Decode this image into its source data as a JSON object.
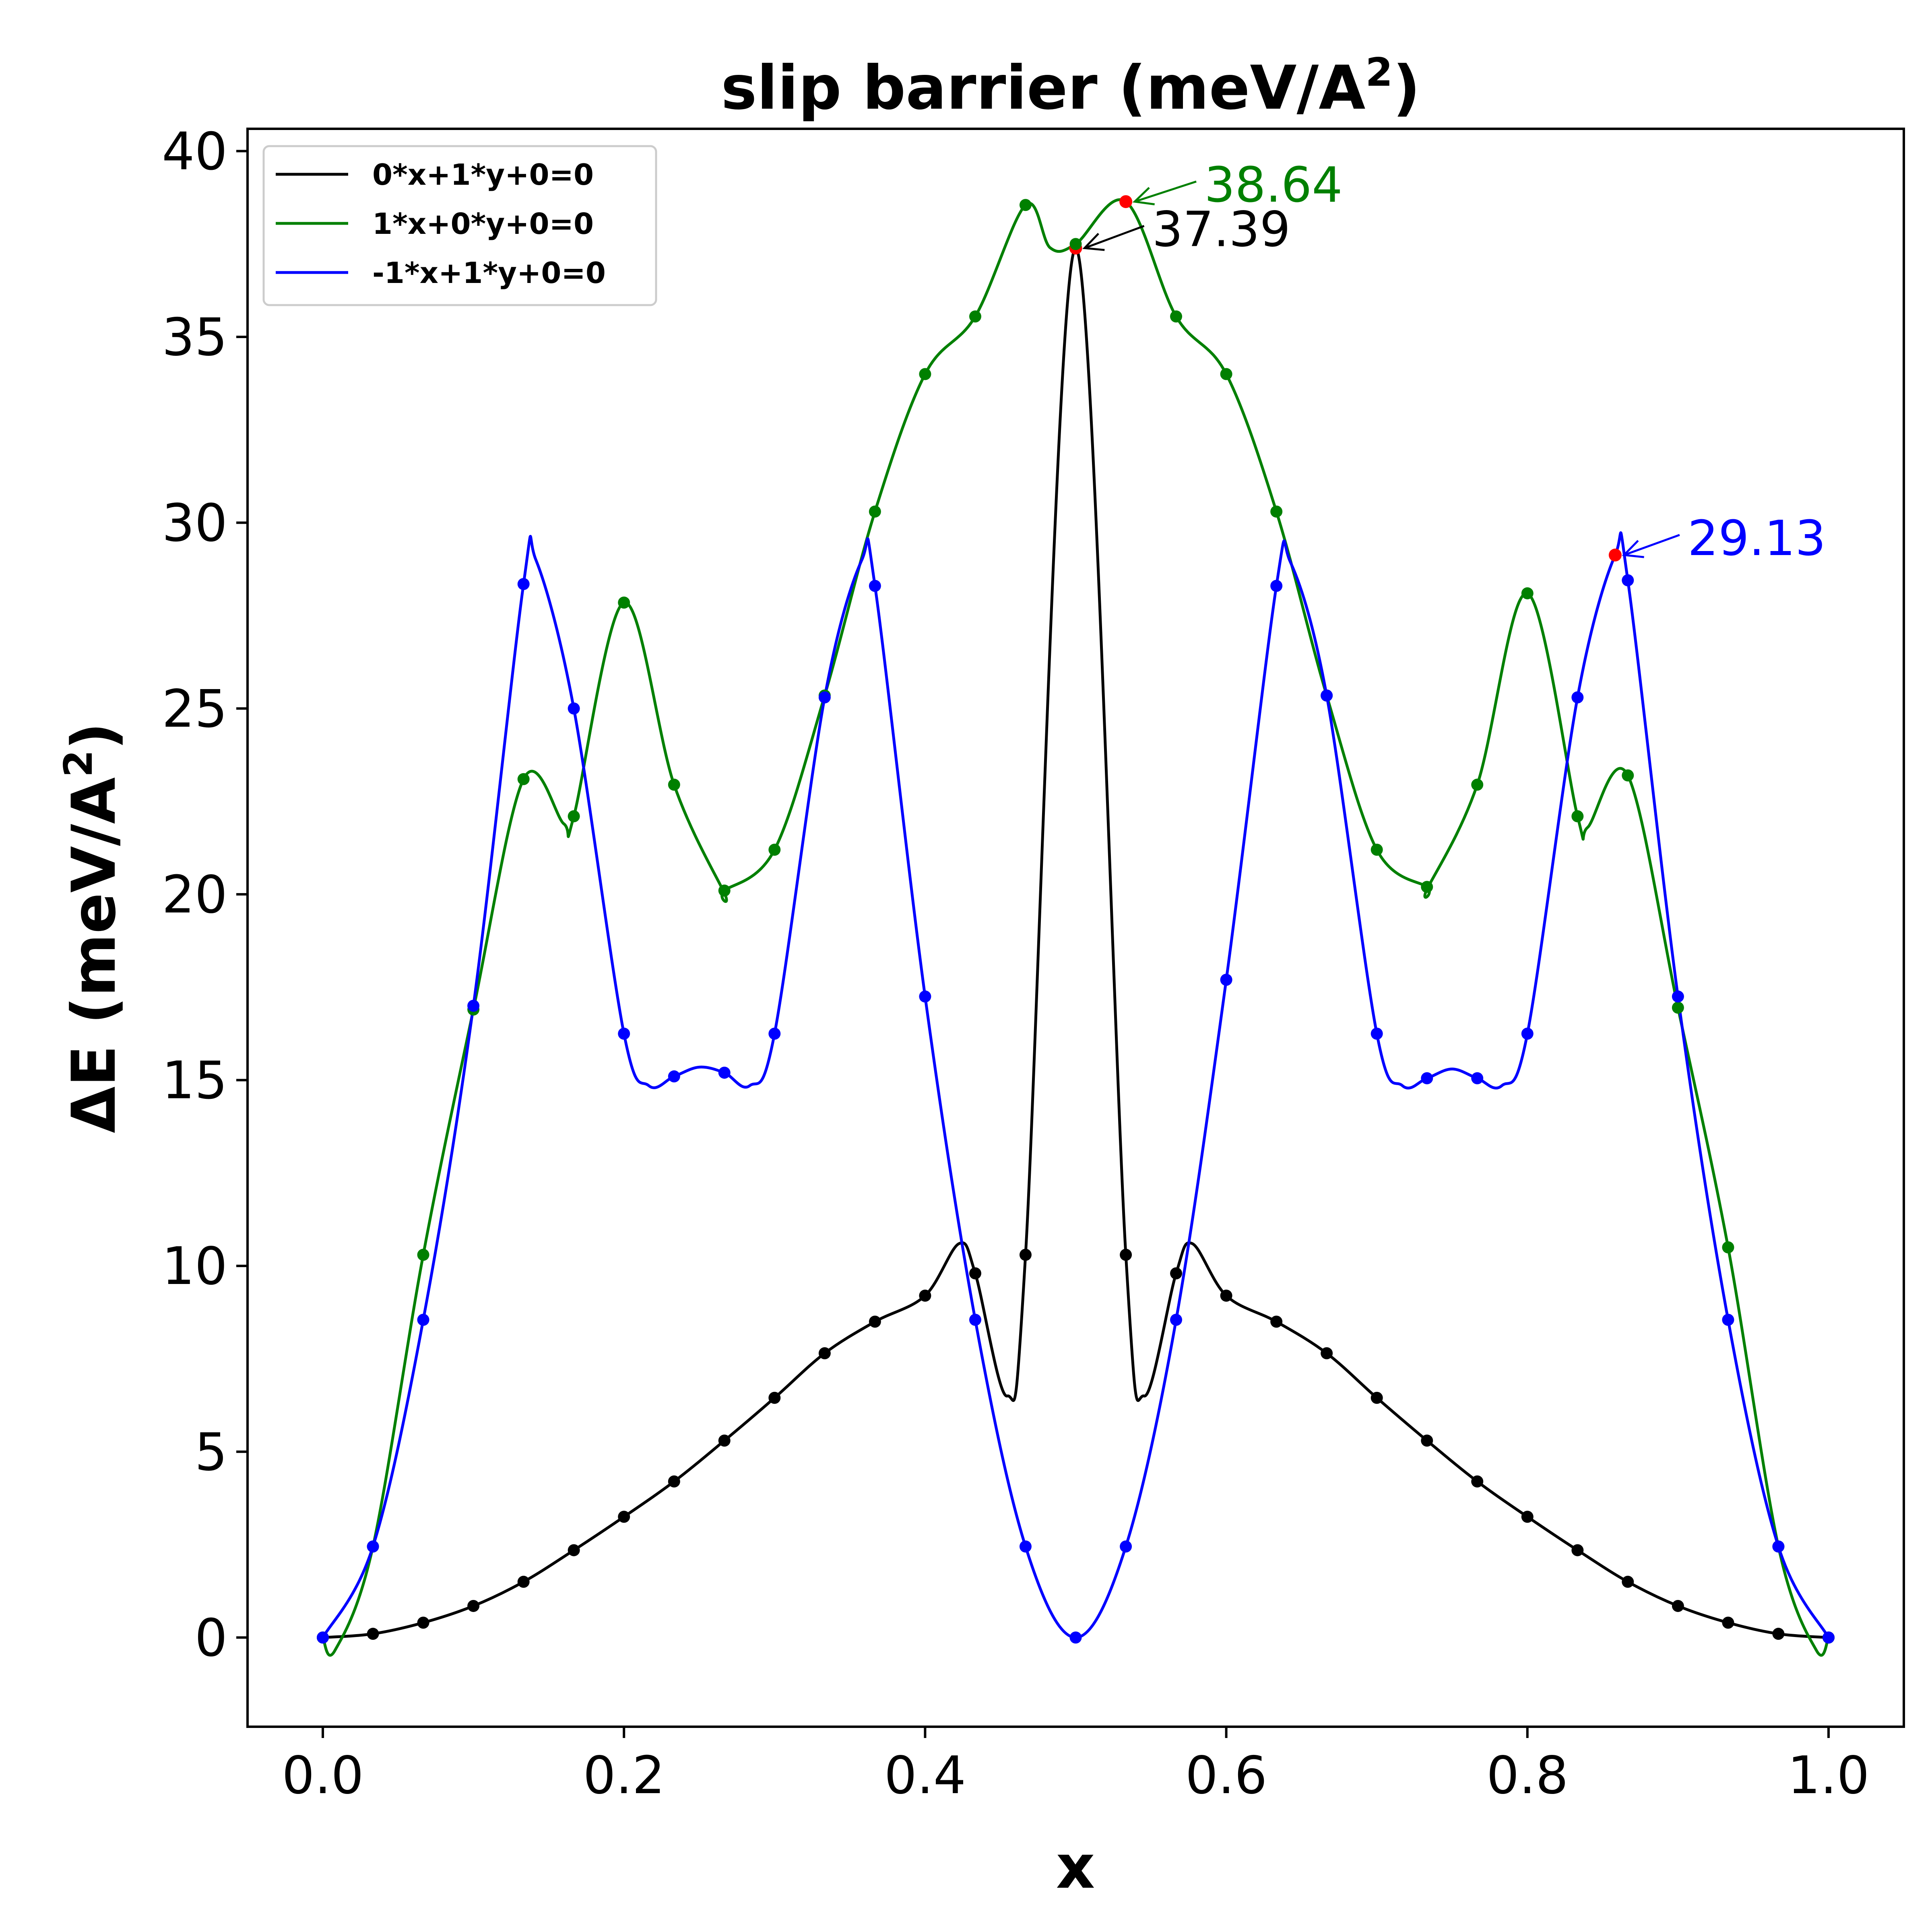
{
  "chart_data": {
    "type": "line",
    "title": "slip barrier (meV/A²)",
    "xlabel": "x",
    "ylabel": "ΔE (meV/A²)",
    "xlim": [
      -0.05,
      1.05
    ],
    "ylim": [
      -2.4,
      40.6
    ],
    "xticks": [
      "0.0",
      "0.2",
      "0.4",
      "0.6",
      "0.8",
      "1.0"
    ],
    "yticks": [
      "0",
      "5",
      "10",
      "15",
      "20",
      "25",
      "30",
      "35",
      "40"
    ],
    "grid": false,
    "legend_position": "top-left",
    "series": [
      {
        "name": "0*x+1*y+0=0",
        "color": "#000000",
        "x": [
          0.0,
          0.0333,
          0.0667,
          0.1,
          0.1333,
          0.1667,
          0.2,
          0.2333,
          0.2667,
          0.3,
          0.3333,
          0.3667,
          0.4,
          0.4333,
          0.4667,
          0.5,
          0.5333,
          0.5667,
          0.6,
          0.6333,
          0.6667,
          0.7,
          0.7333,
          0.7667,
          0.8,
          0.8333,
          0.8667,
          0.9,
          0.9333,
          0.9667,
          1.0
        ],
        "values": [
          0.0,
          0.1,
          0.4,
          0.85,
          1.5,
          2.35,
          3.25,
          4.2,
          5.3,
          6.45,
          7.65,
          8.5,
          9.2,
          9.8,
          10.3,
          37.39,
          10.3,
          9.8,
          9.2,
          8.5,
          7.65,
          6.45,
          5.3,
          4.2,
          3.25,
          2.35,
          1.5,
          0.85,
          0.4,
          0.1,
          0.0
        ],
        "curve_extrema": [
          {
            "x": 0.4225,
            "y": 10.6
          },
          {
            "x": 0.4545,
            "y": 6.5
          },
          {
            "x": 0.5455,
            "y": 6.5
          },
          {
            "x": 0.5775,
            "y": 10.6
          }
        ],
        "annotation": {
          "x": 0.5,
          "y": 37.39,
          "label": "37.39"
        }
      },
      {
        "name": "1*x+0*y+0=0",
        "color": "#008000",
        "x": [
          0.0,
          0.0333,
          0.0667,
          0.1,
          0.1333,
          0.1667,
          0.2,
          0.2333,
          0.2667,
          0.3,
          0.3333,
          0.3667,
          0.4,
          0.4333,
          0.4667,
          0.5,
          0.5333,
          0.5667,
          0.6,
          0.6333,
          0.6667,
          0.7,
          0.7333,
          0.7667,
          0.8,
          0.8333,
          0.8667,
          0.9,
          0.9333,
          0.9667,
          1.0
        ],
        "values": [
          0.0,
          2.45,
          10.3,
          16.9,
          23.1,
          22.1,
          27.85,
          22.95,
          20.1,
          21.2,
          25.35,
          30.3,
          34.0,
          35.55,
          38.55,
          37.5,
          38.64,
          35.55,
          34.0,
          30.3,
          25.35,
          21.2,
          20.2,
          22.95,
          28.1,
          22.1,
          23.2,
          16.95,
          10.5,
          2.45,
          0.0
        ],
        "curve_extrema": [
          {
            "x": 0.008,
            "y": -0.35
          },
          {
            "x": 0.16,
            "y": 21.9
          },
          {
            "x": 0.2665,
            "y": 20.05
          },
          {
            "x": 0.483,
            "y": 37.4
          },
          {
            "x": 0.7335,
            "y": 20.15
          },
          {
            "x": 0.84,
            "y": 21.8
          },
          {
            "x": 0.992,
            "y": -0.35
          }
        ],
        "annotation": {
          "x": 0.5333,
          "y": 38.64,
          "label": "38.64"
        }
      },
      {
        "name": "-1*x+1*y+0=0",
        "color": "#0000ff",
        "x": [
          0.0,
          0.0333,
          0.0667,
          0.1,
          0.1333,
          0.1667,
          0.2,
          0.2333,
          0.2667,
          0.3,
          0.3333,
          0.3667,
          0.4,
          0.4333,
          0.4667,
          0.5,
          0.5333,
          0.5667,
          0.6,
          0.6333,
          0.6667,
          0.7,
          0.7333,
          0.7667,
          0.8,
          0.8333,
          0.8667,
          0.9,
          0.9333,
          0.9667,
          1.0
        ],
        "values": [
          0.0,
          2.45,
          8.55,
          17.0,
          28.35,
          25.0,
          16.25,
          15.1,
          15.2,
          16.25,
          25.3,
          28.3,
          17.25,
          8.55,
          2.45,
          0.0,
          2.45,
          8.55,
          17.7,
          28.3,
          25.35,
          16.25,
          15.05,
          15.05,
          16.25,
          25.3,
          28.45,
          17.25,
          8.55,
          2.45,
          0.0
        ],
        "curve_extrema": [
          {
            "x": 0.1415,
            "y": 29.0
          },
          {
            "x": 0.2165,
            "y": 14.85
          },
          {
            "x": 0.25,
            "y": 15.35
          },
          {
            "x": 0.2835,
            "y": 14.85
          },
          {
            "x": 0.358,
            "y": 29.0
          },
          {
            "x": 0.6425,
            "y": 28.95
          },
          {
            "x": 0.717,
            "y": 14.85
          },
          {
            "x": 0.75,
            "y": 15.3
          },
          {
            "x": 0.783,
            "y": 14.85
          },
          {
            "x": 0.8583,
            "y": 29.13
          }
        ],
        "annotation": {
          "x": 0.8583,
          "y": 29.13,
          "label": "29.13"
        }
      }
    ],
    "max_marker_color": "#ff0000"
  }
}
